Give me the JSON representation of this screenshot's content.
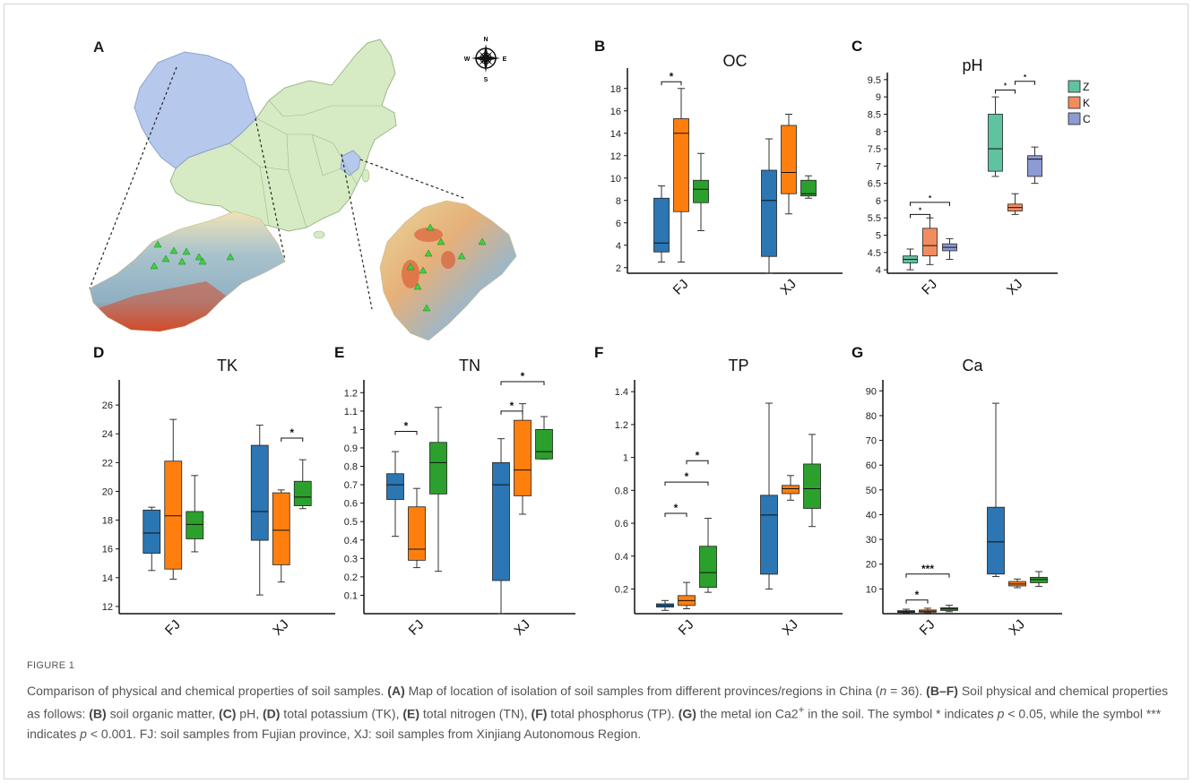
{
  "panels": {
    "a": {
      "letter": "A",
      "compass": [
        "N",
        "E",
        "S",
        "W"
      ]
    }
  },
  "colors": {
    "group1": "#2b76b3",
    "group2": "#ff7f0e",
    "group3": "#2ca02c",
    "pz": "#5fc3a0",
    "pk": "#f28c5e",
    "pc": "#8c9bd2"
  },
  "chart_data": [
    {
      "id": "B",
      "letter": "B",
      "type": "box",
      "title": "OC",
      "ylim": [
        1.5,
        19.5
      ],
      "ticks": [
        2,
        4,
        6,
        8,
        10,
        12,
        14,
        16,
        18
      ],
      "categories": [
        "FJ",
        "XJ"
      ],
      "boxes": [
        [
          {
            "min": 2.5,
            "q1": 3.4,
            "med": 4.2,
            "q3": 8.2,
            "max": 9.3
          },
          {
            "min": 2.5,
            "q1": 7.0,
            "med": 14.0,
            "q3": 15.3,
            "max": 18.0
          },
          {
            "min": 5.3,
            "q1": 7.8,
            "med": 9.0,
            "q3": 9.8,
            "max": 12.2
          }
        ],
        [
          {
            "min": 1.5,
            "q1": 3.0,
            "med": 8.0,
            "q3": 10.7,
            "max": 13.5
          },
          {
            "min": 6.8,
            "q1": 8.6,
            "med": 10.5,
            "q3": 14.7,
            "max": 15.7
          },
          {
            "min": 8.2,
            "q1": 8.4,
            "med": 8.6,
            "q3": 9.8,
            "max": 10.2
          }
        ]
      ],
      "sig": [
        {
          "cat": 0,
          "from": 0,
          "to": 1,
          "y": 18.6,
          "label": "*"
        }
      ]
    },
    {
      "id": "C",
      "letter": "C",
      "type": "box",
      "title": "pH",
      "ylim": [
        3.9,
        9.6
      ],
      "ticks": [
        4.0,
        4.5,
        5.0,
        5.5,
        6.0,
        6.5,
        7.0,
        7.5,
        8.0,
        8.5,
        9.0,
        9.5
      ],
      "categories": [
        "FJ",
        "XJ"
      ],
      "legend": [
        "Z",
        "K",
        "C"
      ],
      "boxes": [
        [
          {
            "min": 4.0,
            "q1": 4.2,
            "med": 4.3,
            "q3": 4.4,
            "max": 4.6
          },
          {
            "min": 4.15,
            "q1": 4.4,
            "med": 4.7,
            "q3": 5.2,
            "max": 5.5
          },
          {
            "min": 4.3,
            "q1": 4.55,
            "med": 4.65,
            "q3": 4.75,
            "max": 4.9
          }
        ],
        [
          {
            "min": 6.7,
            "q1": 6.85,
            "med": 7.5,
            "q3": 8.5,
            "max": 9.0
          },
          {
            "min": 5.6,
            "q1": 5.7,
            "med": 5.8,
            "q3": 5.9,
            "max": 6.2
          },
          {
            "min": 6.5,
            "q1": 6.7,
            "med": 7.2,
            "q3": 7.3,
            "max": 7.55
          }
        ]
      ],
      "sig": [
        {
          "cat": 0,
          "from": 0,
          "to": 1,
          "y": 5.6,
          "label": "*"
        },
        {
          "cat": 0,
          "from": 0,
          "to": 2,
          "y": 5.95,
          "label": "*"
        },
        {
          "cat": 1,
          "from": 0,
          "to": 1,
          "y": 9.2,
          "label": "*"
        },
        {
          "cat": 1,
          "from": 1,
          "to": 2,
          "y": 9.45,
          "label": "*"
        }
      ]
    },
    {
      "id": "D",
      "letter": "D",
      "type": "box",
      "title": "TK",
      "ylim": [
        11.5,
        27.5
      ],
      "ticks": [
        12,
        14,
        16,
        18,
        20,
        22,
        24,
        26
      ],
      "categories": [
        "FJ",
        "XJ"
      ],
      "boxes": [
        [
          {
            "min": 14.5,
            "q1": 15.7,
            "med": 17.1,
            "q3": 18.7,
            "max": 18.9
          },
          {
            "min": 13.9,
            "q1": 14.6,
            "med": 18.3,
            "q3": 22.1,
            "max": 25.0
          },
          {
            "min": 15.8,
            "q1": 16.7,
            "med": 17.7,
            "q3": 18.6,
            "max": 21.1
          }
        ],
        [
          {
            "min": 12.8,
            "q1": 16.6,
            "med": 18.6,
            "q3": 23.2,
            "max": 24.6
          },
          {
            "min": 13.7,
            "q1": 14.9,
            "med": 17.3,
            "q3": 19.9,
            "max": 20.1
          },
          {
            "min": 18.8,
            "q1": 19.0,
            "med": 19.6,
            "q3": 20.7,
            "max": 22.2
          }
        ]
      ],
      "sig": [
        {
          "cat": 1,
          "from": 1,
          "to": 2,
          "y": 23.7,
          "label": "*"
        }
      ]
    },
    {
      "id": "E",
      "letter": "E",
      "type": "box",
      "title": "TN",
      "ylim": [
        0,
        1.25
      ],
      "ticks": [
        0.1,
        0.2,
        0.3,
        0.4,
        0.5,
        0.6,
        0.7,
        0.8,
        0.9,
        1.0,
        1.1,
        1.2
      ],
      "categories": [
        "FJ",
        "XJ"
      ],
      "boxes": [
        [
          {
            "min": 0.42,
            "q1": 0.62,
            "med": 0.7,
            "q3": 0.76,
            "max": 0.88
          },
          {
            "min": 0.25,
            "q1": 0.29,
            "med": 0.35,
            "q3": 0.58,
            "max": 0.68
          },
          {
            "min": 0.23,
            "q1": 0.65,
            "med": 0.82,
            "q3": 0.93,
            "max": 1.12
          }
        ],
        [
          {
            "min": 0.0,
            "q1": 0.18,
            "med": 0.7,
            "q3": 0.82,
            "max": 0.95
          },
          {
            "min": 0.54,
            "q1": 0.64,
            "med": 0.78,
            "q3": 1.05,
            "max": 1.14
          },
          {
            "min": 0.84,
            "q1": 0.84,
            "med": 0.88,
            "q3": 1.0,
            "max": 1.07
          }
        ]
      ],
      "sig": [
        {
          "cat": 0,
          "from": 0,
          "to": 1,
          "y": 0.99,
          "label": "*"
        },
        {
          "cat": 1,
          "from": 0,
          "to": 1,
          "y": 1.1,
          "label": "*"
        },
        {
          "cat": 1,
          "from": 0,
          "to": 2,
          "y": 1.26,
          "label": "*"
        }
      ]
    },
    {
      "id": "F",
      "letter": "F",
      "type": "box",
      "title": "TP",
      "ylim": [
        0.05,
        1.45
      ],
      "ticks": [
        0.2,
        0.4,
        0.6,
        0.8,
        1.0,
        1.2,
        1.4
      ],
      "categories": [
        "FJ",
        "XJ"
      ],
      "boxes": [
        [
          {
            "min": 0.07,
            "q1": 0.09,
            "med": 0.1,
            "q3": 0.11,
            "max": 0.13
          },
          {
            "min": 0.08,
            "q1": 0.1,
            "med": 0.13,
            "q3": 0.16,
            "max": 0.24
          },
          {
            "min": 0.18,
            "q1": 0.21,
            "med": 0.3,
            "q3": 0.46,
            "max": 0.63
          }
        ],
        [
          {
            "min": 0.2,
            "q1": 0.29,
            "med": 0.65,
            "q3": 0.77,
            "max": 1.33
          },
          {
            "min": 0.74,
            "q1": 0.78,
            "med": 0.81,
            "q3": 0.83,
            "max": 0.89
          },
          {
            "min": 0.58,
            "q1": 0.69,
            "med": 0.81,
            "q3": 0.96,
            "max": 1.14
          }
        ]
      ],
      "sig": [
        {
          "cat": 0,
          "from": 0,
          "to": 1,
          "y": 0.66,
          "label": "*"
        },
        {
          "cat": 0,
          "from": 0,
          "to": 2,
          "y": 0.85,
          "label": "*"
        },
        {
          "cat": 0,
          "from": 1,
          "to": 2,
          "y": 0.98,
          "label": "*"
        }
      ]
    },
    {
      "id": "G",
      "letter": "G",
      "type": "box",
      "title": "Ca",
      "ylim": [
        0,
        93
      ],
      "ticks": [
        10,
        20,
        30,
        40,
        50,
        60,
        70,
        80,
        90
      ],
      "categories": [
        "FJ",
        "XJ"
      ],
      "boxes": [
        [
          {
            "min": 0.3,
            "q1": 0.5,
            "med": 0.8,
            "q3": 1.2,
            "max": 1.8
          },
          {
            "min": 0.3,
            "q1": 0.6,
            "med": 1.0,
            "q3": 1.5,
            "max": 2.2
          },
          {
            "min": 0.8,
            "q1": 1.3,
            "med": 1.9,
            "q3": 2.4,
            "max": 3.4
          }
        ],
        [
          {
            "min": 15.0,
            "q1": 16.0,
            "med": 29.0,
            "q3": 43.0,
            "max": 85.0
          },
          {
            "min": 10.5,
            "q1": 11.2,
            "med": 12.0,
            "q3": 13.0,
            "max": 14.0
          },
          {
            "min": 11.0,
            "q1": 12.5,
            "med": 13.8,
            "q3": 14.7,
            "max": 17.0
          }
        ]
      ],
      "sig": [
        {
          "cat": 0,
          "from": 0,
          "to": 1,
          "y": 5.5,
          "label": "*"
        },
        {
          "cat": 0,
          "from": 0,
          "to": 2,
          "y": 16.0,
          "label": "***"
        }
      ]
    }
  ],
  "caption": {
    "figure_label": "FIGURE 1",
    "segments": [
      {
        "t": "Comparison of physical and chemical properties of soil samples. "
      },
      {
        "t": "(A)",
        "b": true
      },
      {
        "t": " Map of location of isolation of soil samples from different provinces/regions in China ("
      },
      {
        "t": "n",
        "i": true
      },
      {
        "t": " = 36). "
      },
      {
        "t": "(B–F)",
        "b": true
      },
      {
        "t": " Soil physical and chemical properties as follows: "
      },
      {
        "t": "(B)",
        "b": true
      },
      {
        "t": " soil organic matter, "
      },
      {
        "t": "(C)",
        "b": true
      },
      {
        "t": " pH, "
      },
      {
        "t": "(D)",
        "b": true
      },
      {
        "t": " total potassium (TK), "
      },
      {
        "t": "(E)",
        "b": true
      },
      {
        "t": " total nitrogen (TN), "
      },
      {
        "t": "(F)",
        "b": true
      },
      {
        "t": " total phosphorus (TP). "
      },
      {
        "t": "(G)",
        "b": true
      },
      {
        "t": " the metal ion Ca2"
      },
      {
        "t": "+",
        "sup": true
      },
      {
        "t": " in the soil. The symbol * indicates "
      },
      {
        "t": "p",
        "i": true
      },
      {
        "t": " < 0.05, while the symbol *** indicates "
      },
      {
        "t": "p",
        "i": true
      },
      {
        "t": " < 0.001. FJ: soil samples from Fujian province, XJ: soil samples from Xinjiang Autonomous Region."
      }
    ]
  }
}
